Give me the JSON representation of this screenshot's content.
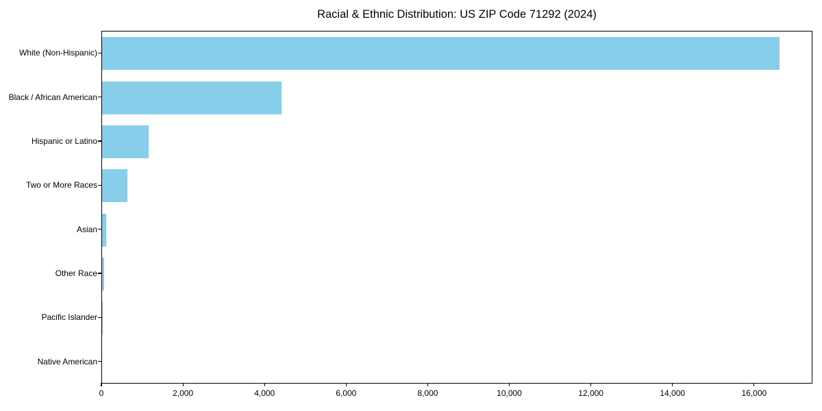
{
  "chart_data": {
    "type": "bar",
    "orientation": "horizontal",
    "title": "Racial & Ethnic Distribution: US ZIP Code 71292 (2024)",
    "categories": [
      "White (Non-Hispanic)",
      "Black / African American",
      "Hispanic or Latino",
      "Two or More Races",
      "Asian",
      "Other Race",
      "Pacific Islander",
      "Native American"
    ],
    "values": [
      16600,
      4400,
      1140,
      620,
      95,
      50,
      10,
      0
    ],
    "bar_color": "#87CEEB",
    "xlabel": "",
    "ylabel": "",
    "xlim": [
      0,
      17430
    ],
    "x_ticks": [
      0,
      2000,
      4000,
      6000,
      8000,
      10000,
      12000,
      14000,
      16000
    ],
    "x_tick_labels": [
      "0",
      "2,000",
      "4,000",
      "6,000",
      "8,000",
      "10,000",
      "12,000",
      "14,000",
      "16,000"
    ],
    "grid": false,
    "legend": "none",
    "frame": "all-sides",
    "text_color": "#000000"
  }
}
